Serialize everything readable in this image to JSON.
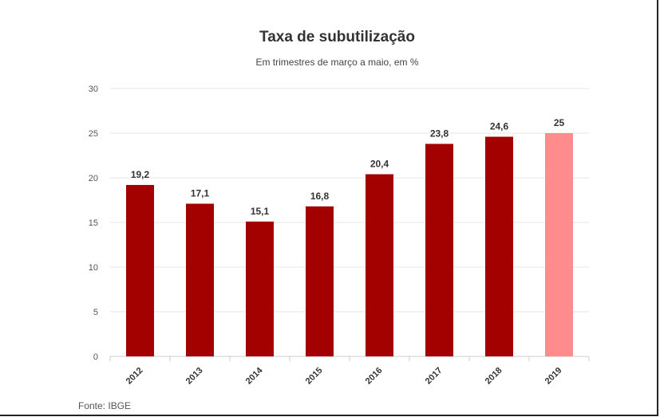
{
  "title": "Taxa de subutilização",
  "subtitle": "Em trimestres de março a maio, em %",
  "source": "Fonte: IBGE",
  "colors": {
    "bar": "#a30000",
    "highlight": "#ff8c8c",
    "grid": "#e6e6e6",
    "axis": "#cccccc"
  },
  "chart_data": {
    "type": "bar",
    "categories": [
      "2012",
      "2013",
      "2014",
      "2015",
      "2016",
      "2017",
      "2018",
      "2019"
    ],
    "values": [
      19.2,
      17.1,
      15.1,
      16.8,
      20.4,
      23.8,
      24.6,
      25
    ],
    "data_labels": [
      "19,2",
      "17,1",
      "15,1",
      "16,8",
      "20,4",
      "23,8",
      "24,6",
      "25"
    ],
    "highlight_index": 7,
    "ylim": [
      0,
      30
    ],
    "yticks": [
      0,
      5,
      10,
      15,
      20,
      25,
      30
    ],
    "grid": true
  }
}
